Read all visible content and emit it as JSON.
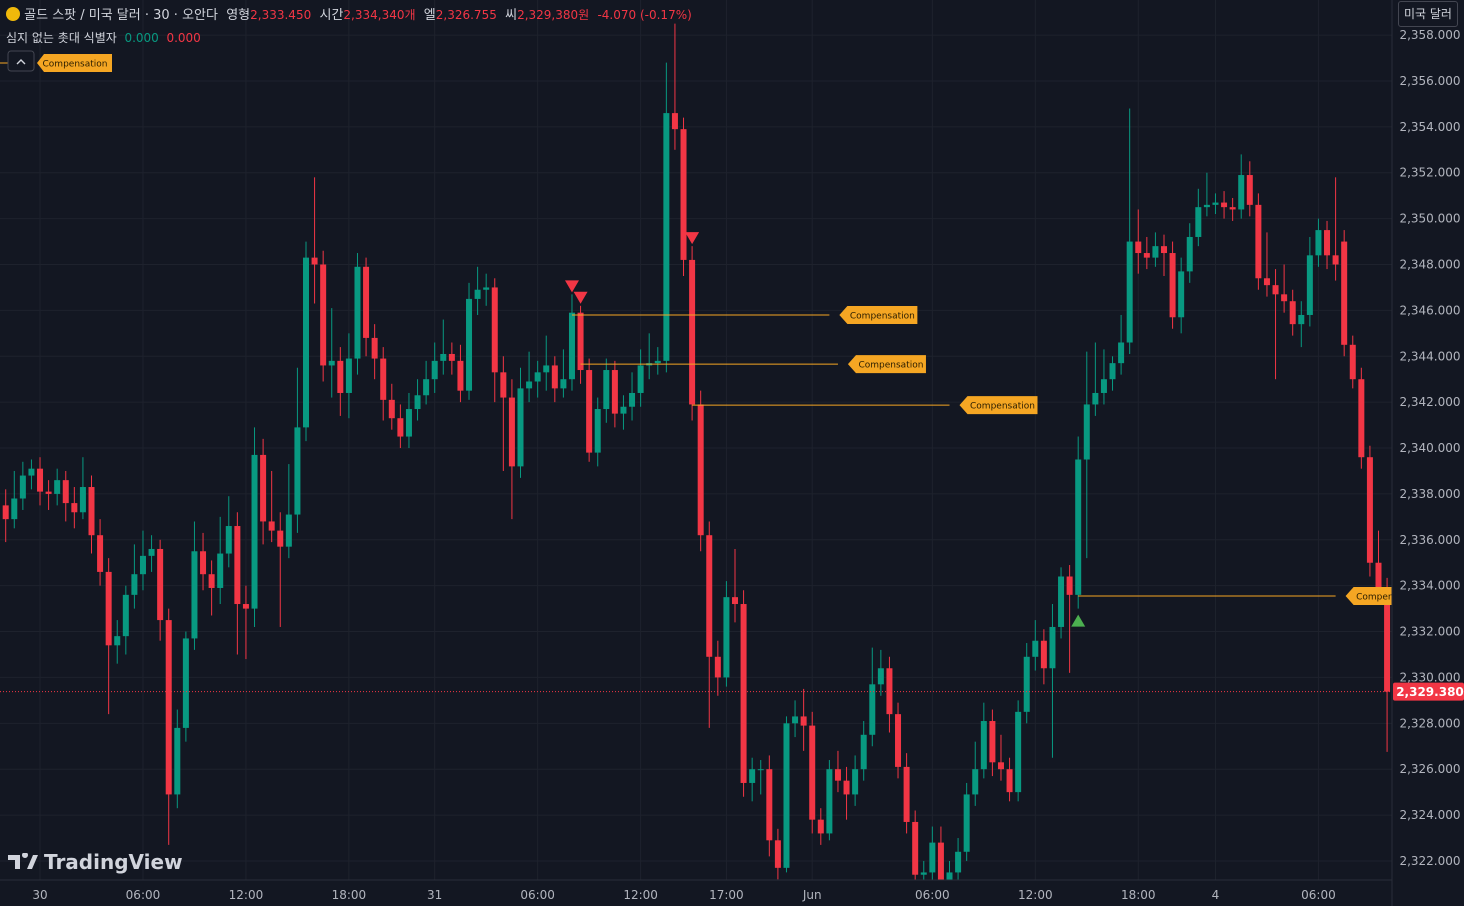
{
  "legend": {
    "symbol": "골드 스팟 / 미국 달러 · 30 · 오안다",
    "o_label": "영형",
    "o": "2,333.450",
    "h_label": "시간",
    "h": "2,334,340개",
    "l_label": "엘",
    "l": "2,326.755",
    "c_label": "씨",
    "c": "2,329,380원",
    "change": "-4.070 (-0.17%)"
  },
  "indicator": {
    "name": "심지 없는 촛대 식별자",
    "v1": "0.000",
    "v2": "0.000"
  },
  "currency_button": "미국 달러",
  "watermark": "TradingView",
  "chart_data": {
    "type": "candlestick",
    "up_color": "#089981",
    "down_color": "#f23645",
    "grid": true,
    "ylim": [
      2321.17,
      2359.53
    ],
    "yticks": [
      {
        "value": 2358,
        "label": "2,358.000"
      },
      {
        "value": 2356,
        "label": "2,356.000"
      },
      {
        "value": 2354,
        "label": "2,354.000"
      },
      {
        "value": 2352,
        "label": "2,352.000"
      },
      {
        "value": 2350,
        "label": "2,350.000"
      },
      {
        "value": 2348,
        "label": "2,348.000"
      },
      {
        "value": 2346,
        "label": "2,346.000"
      },
      {
        "value": 2344,
        "label": "2,344.000"
      },
      {
        "value": 2342,
        "label": "2,342.000"
      },
      {
        "value": 2340,
        "label": "2,340.000"
      },
      {
        "value": 2338,
        "label": "2,338.000"
      },
      {
        "value": 2336,
        "label": "2,336.000"
      },
      {
        "value": 2334,
        "label": "2,334.000"
      },
      {
        "value": 2332,
        "label": "2,332.000"
      },
      {
        "value": 2330,
        "label": "2,330.000"
      },
      {
        "value": 2328,
        "label": "2,328.000"
      },
      {
        "value": 2326,
        "label": "2,326.000"
      },
      {
        "value": 2324,
        "label": "2,324.000"
      },
      {
        "value": 2322,
        "label": "2,322.000"
      }
    ],
    "current_price": 2329.38,
    "current_price_label": "2,329.380",
    "categories": [
      null,
      null,
      null,
      null,
      "30",
      null,
      null,
      null,
      null,
      null,
      null,
      null,
      null,
      null,
      null,
      null,
      "06:00",
      null,
      null,
      null,
      null,
      null,
      null,
      null,
      null,
      null,
      null,
      null,
      "12:00",
      null,
      null,
      null,
      null,
      null,
      null,
      null,
      null,
      null,
      null,
      null,
      "18:00",
      null,
      null,
      null,
      null,
      null,
      null,
      null,
      null,
      null,
      "31",
      null,
      null,
      null,
      null,
      null,
      null,
      null,
      null,
      null,
      null,
      null,
      "06:00",
      null,
      null,
      null,
      null,
      null,
      null,
      null,
      null,
      null,
      null,
      null,
      "12:00",
      null,
      null,
      null,
      null,
      null,
      null,
      null,
      null,
      null,
      "17:00",
      null,
      null,
      null,
      null,
      null,
      null,
      null,
      null,
      null,
      "Jun",
      null,
      null,
      null,
      null,
      null,
      null,
      null,
      null,
      null,
      null,
      null,
      null,
      null,
      "06:00",
      null,
      null,
      null,
      null,
      null,
      null,
      null,
      null,
      null,
      null,
      null,
      "12:00",
      null,
      null,
      null,
      null,
      null,
      null,
      null,
      null,
      null,
      null,
      null,
      "18:00",
      null,
      null,
      null,
      null,
      null,
      null,
      null,
      null,
      "4",
      null,
      null,
      null,
      null,
      null,
      null,
      null,
      null,
      null,
      null,
      null,
      "06:00",
      null,
      null,
      null,
      null,
      null,
      null,
      null,
      null
    ],
    "open": [
      2337.5,
      2336.9,
      2337.8,
      2338.8,
      2339.1,
      2338.1,
      2338.0,
      2338.6,
      2337.6,
      2337.2,
      2338.3,
      2336.2,
      2334.6,
      2331.4,
      2331.8,
      2333.6,
      2334.5,
      2335.3,
      2335.6,
      2332.5,
      2324.9,
      2327.8,
      2331.7,
      2335.5,
      2334.5,
      2333.9,
      2335.4,
      2336.6,
      2333.2,
      2333.0,
      2339.7,
      2336.8,
      2336.4,
      2335.7,
      2337.1,
      2340.9,
      2348.3,
      2348.0,
      2343.6,
      2343.8,
      2342.4,
      2343.9,
      2347.9,
      2344.8,
      2343.9,
      2342.1,
      2341.3,
      2340.5,
      2341.7,
      2342.3,
      2343.0,
      2343.8,
      2344.1,
      2343.8,
      2342.5,
      2346.5,
      2346.9,
      2347.0,
      2343.3,
      2342.2,
      2339.2,
      2342.6,
      2342.9,
      2343.3,
      2343.6,
      2342.6,
      2343.0,
      2345.9,
      2343.4,
      2339.8,
      2341.7,
      2343.4,
      2341.5,
      2341.8,
      2342.4,
      2343.6,
      2343.7,
      2343.8,
      2354.6,
      2353.9,
      2348.2,
      2341.9,
      2336.2,
      2330.9,
      2330.0,
      2333.5,
      2333.2,
      2325.4,
      2326.0,
      2326.0,
      2322.9,
      2321.7,
      2328.0,
      2328.3,
      2327.9,
      2323.8,
      2323.2,
      2326.0,
      2325.5,
      2324.9,
      2326.0,
      2327.5,
      2329.7,
      2330.4,
      2328.4,
      2326.1,
      2323.7,
      2321.4,
      2321.5,
      2322.8,
      2321.0,
      2321.5,
      2322.4,
      2324.9,
      2326.0,
      2328.1,
      2326.3,
      2326.0,
      2325.0,
      2328.5,
      2330.9,
      2331.6,
      2330.4,
      2332.2,
      2334.4,
      2333.6,
      2339.5,
      2341.9,
      2342.4,
      2343.0,
      2343.7,
      2344.6,
      2349.0,
      2348.5,
      2348.3,
      2348.8,
      2348.5,
      2345.7,
      2347.7,
      2349.2,
      2350.5,
      2350.6,
      2350.7,
      2350.5,
      2350.4,
      2351.9,
      2350.6,
      2347.4,
      2347.1,
      2346.7,
      2346.4,
      2345.4,
      2345.8,
      2348.4,
      2349.5,
      2348.4,
      2349.0,
      2344.5,
      2343.0,
      2339.6,
      2335.0,
      2333.45
    ],
    "high": [
      2338.2,
      2339.0,
      2339.4,
      2339.5,
      2339.6,
      2338.6,
      2339.1,
      2339.0,
      2338.3,
      2339.6,
      2338.8,
      2336.9,
      2335.2,
      2332.5,
      2334.0,
      2335.8,
      2336.4,
      2336.2,
      2336.0,
      2333.0,
      2328.6,
      2332.0,
      2336.8,
      2336.3,
      2335.1,
      2337.0,
      2337.9,
      2337.2,
      2334.0,
      2340.9,
      2340.4,
      2339.0,
      2337.2,
      2339.3,
      2343.5,
      2349.0,
      2351.8,
      2348.6,
      2346.1,
      2344.4,
      2345.0,
      2348.5,
      2348.3,
      2345.4,
      2344.4,
      2342.8,
      2341.9,
      2342.4,
      2343.0,
      2343.8,
      2344.6,
      2345.6,
      2344.6,
      2344.5,
      2347.2,
      2347.9,
      2347.6,
      2347.4,
      2344.0,
      2343.0,
      2343.5,
      2344.2,
      2343.8,
      2344.9,
      2344.0,
      2344.3,
      2346.7,
      2346.2,
      2343.9,
      2342.2,
      2343.9,
      2343.8,
      2342.3,
      2343.3,
      2344.3,
      2345.0,
      2344.4,
      2356.8,
      2358.5,
      2354.4,
      2348.8,
      2342.5,
      2336.8,
      2331.6,
      2334.2,
      2335.6,
      2333.8,
      2326.5,
      2326.4,
      2326.6,
      2323.4,
      2328.3,
      2329.0,
      2329.5,
      2328.5,
      2324.3,
      2326.4,
      2326.8,
      2326.1,
      2326.6,
      2328.1,
      2331.3,
      2331.2,
      2330.9,
      2328.9,
      2326.7,
      2324.2,
      2322.0,
      2323.5,
      2323.5,
      2322.0,
      2323.0,
      2325.4,
      2327.2,
      2328.9,
      2328.6,
      2327.5,
      2326.5,
      2329.0,
      2331.5,
      2332.5,
      2332.1,
      2333.2,
      2334.8,
      2334.9,
      2340.5,
      2344.2,
      2344.6,
      2344.3,
      2344.0,
      2345.8,
      2354.8,
      2350.4,
      2349.2,
      2349.4,
      2349.3,
      2349.0,
      2348.3,
      2349.8,
      2351.3,
      2352.0,
      2351.1,
      2351.2,
      2350.9,
      2352.8,
      2352.5,
      2351.1,
      2349.4,
      2347.8,
      2348.0,
      2346.9,
      2346.4,
      2349.2,
      2350.0,
      2349.9,
      2351.8,
      2349.5,
      2344.9,
      2343.5,
      2340.1,
      2336.4,
      2334.34
    ],
    "low": [
      2335.9,
      2336.5,
      2337.3,
      2338.2,
      2337.5,
      2337.3,
      2337.5,
      2336.8,
      2336.5,
      2336.9,
      2335.4,
      2334.0,
      2328.4,
      2330.6,
      2331.0,
      2333.0,
      2333.8,
      2334.6,
      2331.6,
      2322.7,
      2324.3,
      2327.2,
      2331.2,
      2333.8,
      2332.7,
      2333.2,
      2334.8,
      2331.0,
      2330.8,
      2332.2,
      2335.8,
      2335.9,
      2332.2,
      2335.2,
      2336.3,
      2340.3,
      2346.3,
      2342.9,
      2342.2,
      2341.4,
      2341.3,
      2343.2,
      2344.0,
      2343.0,
      2341.2,
      2340.8,
      2340.0,
      2340.0,
      2341.2,
      2341.9,
      2342.4,
      2343.2,
      2343.2,
      2342.0,
      2342.1,
      2345.8,
      2346.2,
      2342.0,
      2339.0,
      2336.9,
      2338.7,
      2342.0,
      2342.2,
      2342.5,
      2342.0,
      2342.2,
      2342.5,
      2342.8,
      2339.4,
      2339.2,
      2341.1,
      2340.9,
      2340.8,
      2341.2,
      2341.8,
      2343.0,
      2343.2,
      2343.3,
      2353.0,
      2347.5,
      2341.2,
      2335.5,
      2327.8,
      2329.2,
      2329.6,
      2332.4,
      2324.8,
      2324.6,
      2324.9,
      2322.2,
      2321.2,
      2321.5,
      2327.4,
      2326.8,
      2323.2,
      2322.7,
      2322.9,
      2325.0,
      2323.8,
      2324.4,
      2325.5,
      2327.0,
      2329.2,
      2327.6,
      2325.6,
      2323.2,
      2321.0,
      2321.0,
      2321.1,
      2320.6,
      2320.7,
      2321.1,
      2322.0,
      2324.4,
      2325.6,
      2325.7,
      2325.5,
      2324.6,
      2324.6,
      2328.0,
      2330.3,
      2329.7,
      2326.5,
      2331.7,
      2330.2,
      2333.0,
      2335.2,
      2341.4,
      2341.9,
      2342.5,
      2343.2,
      2344.1,
      2347.6,
      2347.8,
      2347.9,
      2347.5,
      2345.2,
      2345.0,
      2347.2,
      2348.8,
      2350.1,
      2350.2,
      2350.0,
      2349.9,
      2350.0,
      2350.1,
      2346.9,
      2346.6,
      2343.0,
      2345.9,
      2344.9,
      2344.4,
      2345.3,
      2347.9,
      2347.8,
      2347.3,
      2344.0,
      2342.6,
      2339.1,
      2334.4,
      2333.2,
      2326.755
    ],
    "close": [
      2336.9,
      2337.8,
      2338.8,
      2339.1,
      2338.1,
      2338.0,
      2338.6,
      2337.6,
      2337.2,
      2338.3,
      2336.2,
      2334.6,
      2331.4,
      2331.8,
      2333.6,
      2334.5,
      2335.3,
      2335.6,
      2332.5,
      2324.9,
      2327.8,
      2331.7,
      2335.5,
      2334.5,
      2333.9,
      2335.4,
      2336.6,
      2333.2,
      2333.0,
      2339.7,
      2336.8,
      2336.4,
      2335.7,
      2337.1,
      2340.9,
      2348.3,
      2348.0,
      2343.6,
      2343.8,
      2342.4,
      2343.9,
      2347.9,
      2344.8,
      2343.9,
      2342.1,
      2341.3,
      2340.5,
      2341.7,
      2342.3,
      2343.0,
      2343.8,
      2344.1,
      2343.8,
      2342.5,
      2346.5,
      2346.9,
      2347.0,
      2343.3,
      2342.2,
      2339.2,
      2342.6,
      2342.9,
      2343.3,
      2343.6,
      2342.6,
      2343.0,
      2345.9,
      2343.4,
      2339.8,
      2341.7,
      2343.4,
      2341.5,
      2341.8,
      2342.4,
      2343.6,
      2343.7,
      2343.8,
      2354.6,
      2353.9,
      2348.2,
      2341.9,
      2336.2,
      2330.9,
      2330.0,
      2333.5,
      2333.2,
      2325.4,
      2326.0,
      2326.0,
      2322.9,
      2321.7,
      2328.0,
      2328.3,
      2327.9,
      2323.8,
      2323.2,
      2326.0,
      2325.5,
      2324.9,
      2326.0,
      2327.5,
      2329.7,
      2330.4,
      2328.4,
      2326.1,
      2323.7,
      2321.4,
      2321.5,
      2322.8,
      2321.0,
      2321.5,
      2322.4,
      2324.9,
      2326.0,
      2328.1,
      2326.3,
      2326.0,
      2325.0,
      2328.5,
      2330.9,
      2331.6,
      2330.4,
      2332.2,
      2334.4,
      2333.6,
      2339.5,
      2341.9,
      2342.4,
      2343.0,
      2343.7,
      2344.6,
      2349.0,
      2348.5,
      2348.3,
      2348.8,
      2348.5,
      2345.7,
      2347.7,
      2349.2,
      2350.5,
      2350.6,
      2350.7,
      2350.5,
      2350.4,
      2351.9,
      2350.6,
      2347.4,
      2347.1,
      2346.7,
      2346.4,
      2345.4,
      2345.8,
      2348.4,
      2349.5,
      2348.4,
      2348.0,
      2344.5,
      2343.0,
      2339.6,
      2335.0,
      2333.45,
      2329.38
    ],
    "annotation_label": "Compensation",
    "signals": [
      {
        "index": 66,
        "direction": "down",
        "level": 2345.8
      },
      {
        "index": 67,
        "direction": "down",
        "level": 2343.66
      },
      {
        "index": 80,
        "direction": "down",
        "level": 2341.87
      },
      {
        "index": 125,
        "direction": "up",
        "level": 2333.55
      }
    ]
  }
}
